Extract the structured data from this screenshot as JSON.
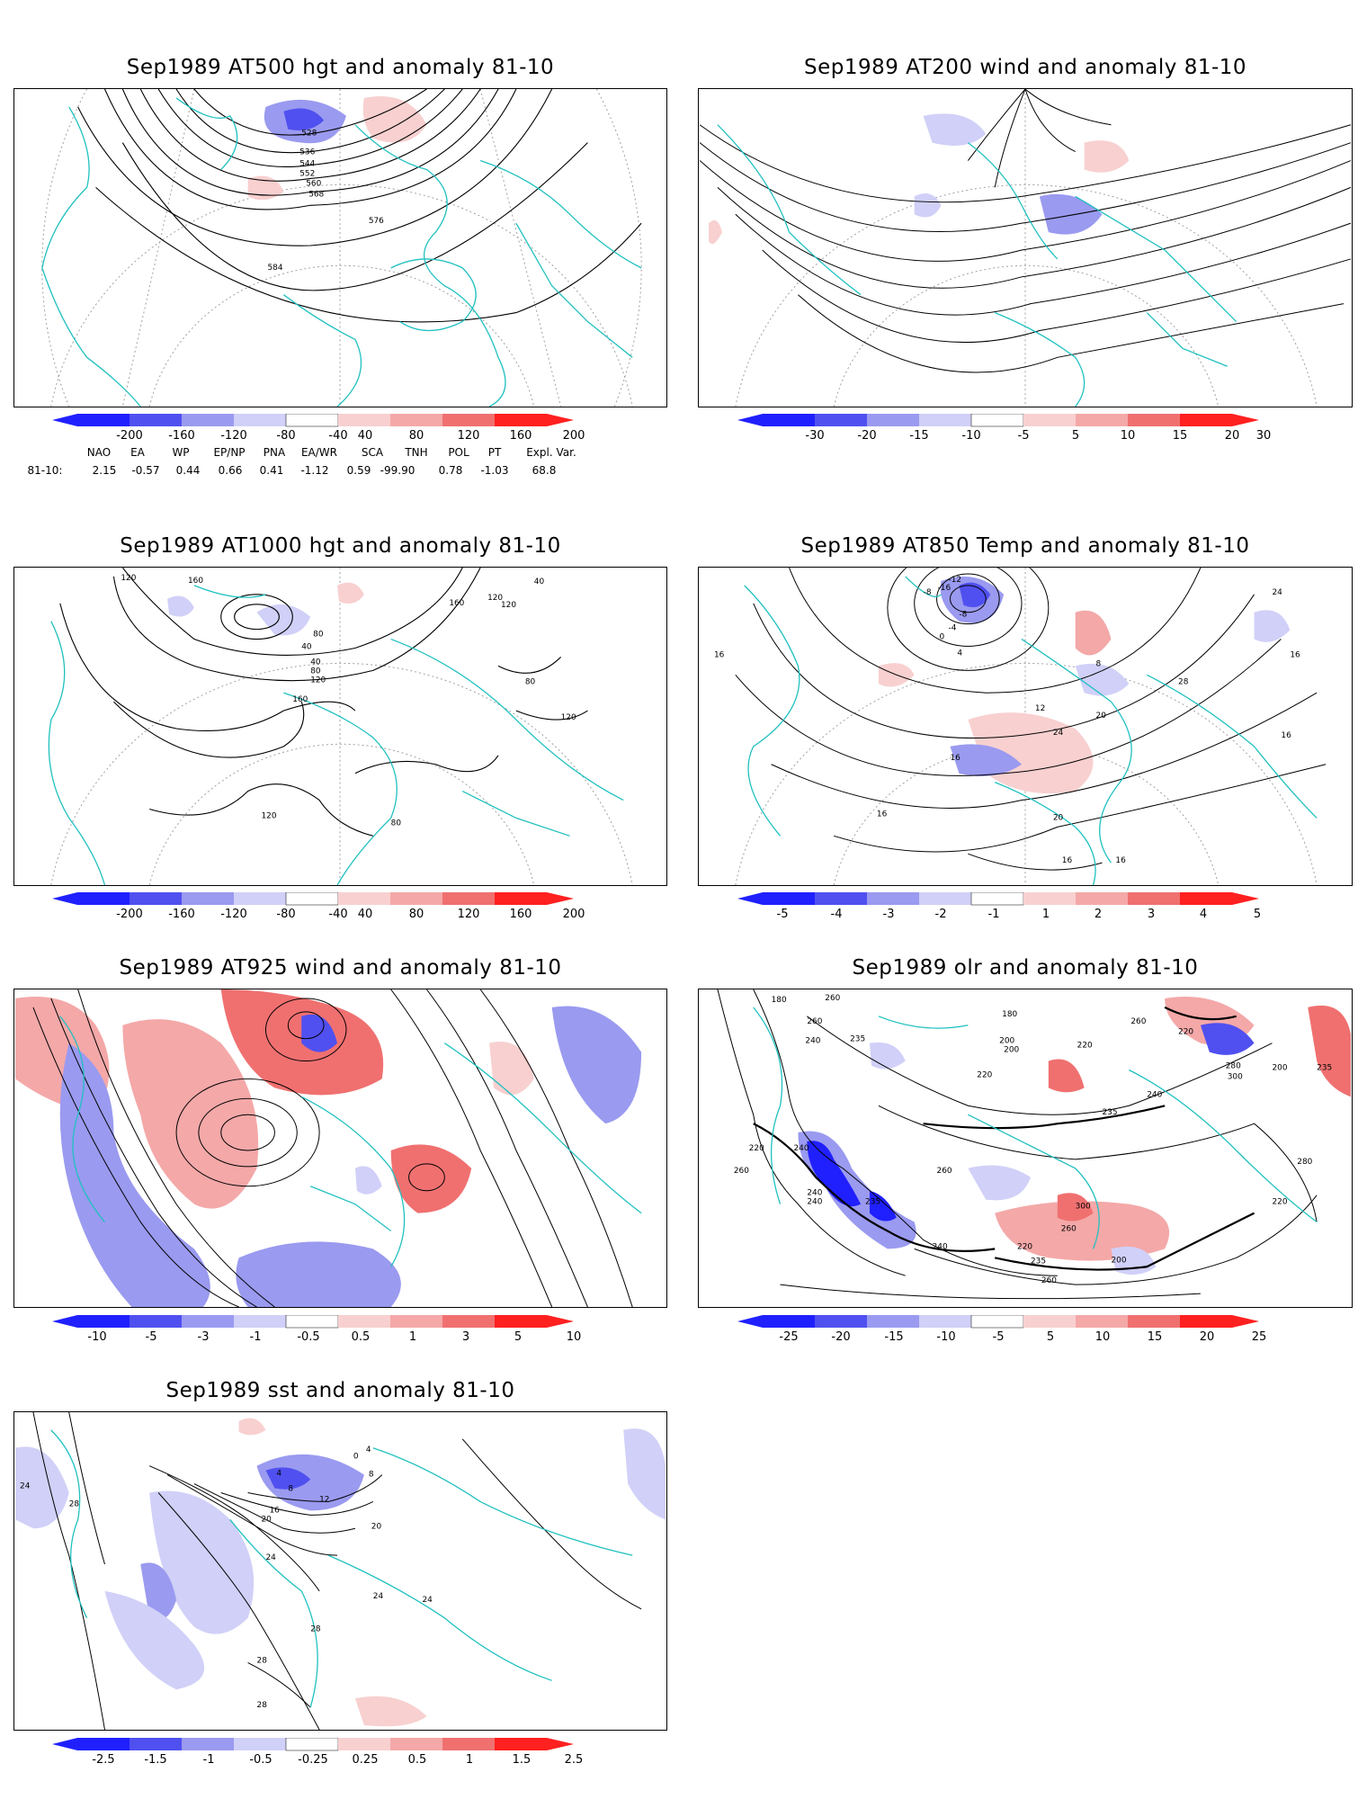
{
  "colors": {
    "coast": "#20c0c0",
    "contour": "#000000",
    "grid": "#a0a0a0",
    "blue_dark": "#2020ff",
    "blue_mid": "#5050f0",
    "blue_light": "#9a9af0",
    "blue_pale": "#d0d0f8",
    "red_pale": "#f8d0d0",
    "red_light": "#f4a8a8",
    "red_mid": "#f07070",
    "red_dark": "#ff2020"
  },
  "panels": [
    {
      "id": "p1",
      "title": "Sep1989 AT500 hgt and anomaly 81-10",
      "contour_labels": [
        "528",
        "536",
        "544",
        "552",
        "560",
        "568",
        "576",
        "584"
      ],
      "colorbar": [
        "-200",
        "-160",
        "-120",
        "-80",
        "-40",
        "40",
        "80",
        "120",
        "160",
        "200"
      ]
    },
    {
      "id": "p2",
      "title": "Sep1989 AT200 wind and anomaly 81-10",
      "contour_labels": [],
      "colorbar": [
        "-30",
        "-20",
        "-15",
        "-10",
        "-5",
        "5",
        "10",
        "15",
        "20",
        "30"
      ]
    },
    {
      "id": "p3",
      "title": "Sep1989 AT1000 hgt and anomaly 81-10",
      "contour_labels": [
        "120",
        "160",
        "80",
        "40",
        "40",
        "80",
        "120",
        "160",
        "120",
        "40",
        "160",
        "120",
        "80",
        "120",
        "80",
        "120"
      ],
      "colorbar": [
        "-200",
        "-160",
        "-120",
        "-80",
        "-40",
        "40",
        "80",
        "120",
        "160",
        "200"
      ]
    },
    {
      "id": "p4",
      "title": "Sep1989 AT850 Temp and anomaly 81-10",
      "contour_labels": [
        "-12",
        "-16",
        "-8",
        "-4",
        "-8",
        "0",
        "4",
        "8",
        "16",
        "24",
        "16",
        "28",
        "12",
        "20",
        "24",
        "16",
        "16",
        "20",
        "16",
        "16",
        "16"
      ],
      "colorbar": [
        "-5",
        "-4",
        "-3",
        "-2",
        "-1",
        "1",
        "2",
        "3",
        "4",
        "5"
      ]
    },
    {
      "id": "p5",
      "title": "Sep1989 AT925 wind and anomaly 81-10",
      "contour_labels": [],
      "colorbar": [
        "-10",
        "-5",
        "-3",
        "-1",
        "-0.5",
        "0.5",
        "1",
        "3",
        "5",
        "10"
      ]
    },
    {
      "id": "p6",
      "title": "Sep1989 olr and anomaly 81-10",
      "contour_labels": [
        "180",
        "260",
        "235",
        "240",
        "260",
        "180",
        "220",
        "220",
        "200",
        "200",
        "220",
        "235",
        "240",
        "260",
        "300",
        "280",
        "235",
        "200",
        "220",
        "240",
        "260",
        "240",
        "235",
        "260",
        "240",
        "300",
        "280",
        "260",
        "220",
        "200",
        "235",
        "240",
        "260",
        "220"
      ],
      "colorbar": [
        "-25",
        "-20",
        "-15",
        "-10",
        "-5",
        "5",
        "10",
        "15",
        "20",
        "25"
      ]
    },
    {
      "id": "p7",
      "title": "Sep1989 sst and anomaly 81-10",
      "contour_labels": [
        "24",
        "28",
        "4",
        "8",
        "12",
        "16",
        "20",
        "24",
        "28",
        "20",
        "24",
        "28",
        "28",
        "24",
        "0",
        "4",
        "8"
      ],
      "colorbar": [
        "-2.5",
        "-1.5",
        "-1",
        "-0.5",
        "-0.25",
        "0.25",
        "0.5",
        "1",
        "1.5",
        "2.5"
      ]
    }
  ],
  "teleconnection": {
    "headers": [
      "NAO",
      "EA",
      "WP",
      "EP/NP",
      "PNA",
      "EA/WR",
      "SCA",
      "TNH",
      "POL",
      "PT",
      "Expl. Var."
    ],
    "row_label": "81-10:",
    "values": [
      "2.15",
      "-0.57",
      "0.44",
      "0.66",
      "0.41",
      "-1.12",
      "0.59",
      "-99.90",
      "0.78",
      "-1.03",
      "68.8"
    ]
  }
}
